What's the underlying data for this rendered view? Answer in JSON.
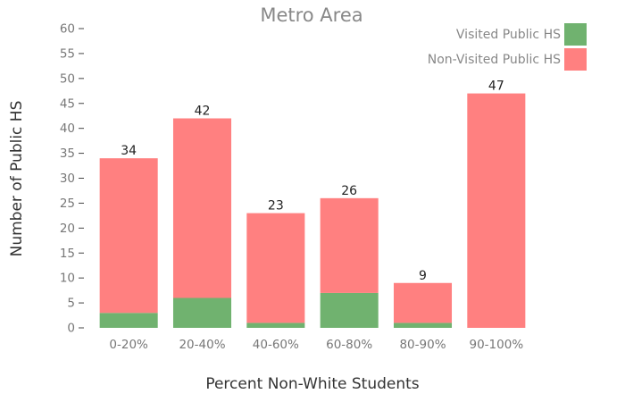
{
  "chart_data": {
    "type": "bar",
    "stacked": true,
    "title": "Metro Area",
    "xlabel": "Percent Non-White Students",
    "ylabel": "Number of Public HS",
    "ylim": [
      0,
      60
    ],
    "yticks": [
      0,
      5,
      10,
      15,
      20,
      25,
      30,
      35,
      40,
      45,
      50,
      55,
      60
    ],
    "categories": [
      "0-20%",
      "20-40%",
      "40-60%",
      "60-80%",
      "80-90%",
      "90-100%"
    ],
    "series": [
      {
        "name": "Visited Public HS",
        "color": "#70b26f",
        "values": [
          3,
          6,
          1,
          7,
          1,
          0
        ]
      },
      {
        "name": "Non-Visited Public HS",
        "color": "#ff8080",
        "values": [
          31,
          36,
          22,
          19,
          8,
          47
        ]
      }
    ],
    "totals": [
      "34",
      "42",
      "23",
      "26",
      "9",
      "47"
    ],
    "legend_position": "top-right",
    "grid": false
  }
}
